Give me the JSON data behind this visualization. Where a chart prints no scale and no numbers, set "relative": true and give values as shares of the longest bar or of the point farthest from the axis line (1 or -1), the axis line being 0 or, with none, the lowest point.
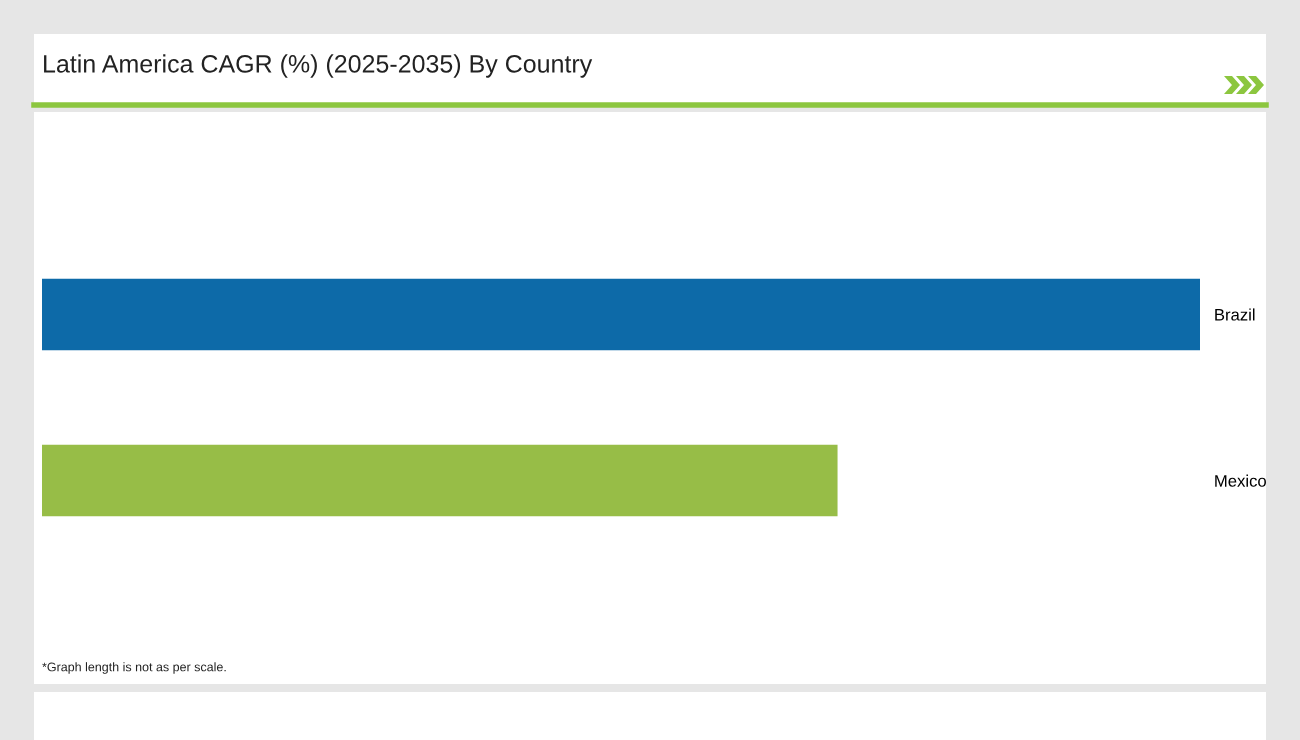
{
  "chart_data": {
    "type": "bar",
    "orientation": "horizontal",
    "relative": true,
    "title": "Latin America CAGR (%) (2025-2035) By Country",
    "categories": [
      "Brazil",
      "Mexico"
    ],
    "values": [
      1,
      0.687
    ],
    "colors": [
      "#0d6aa8",
      "#97bd47"
    ],
    "annotations": [
      "*Graph length is not as per scale."
    ],
    "stacked": false
  }
}
